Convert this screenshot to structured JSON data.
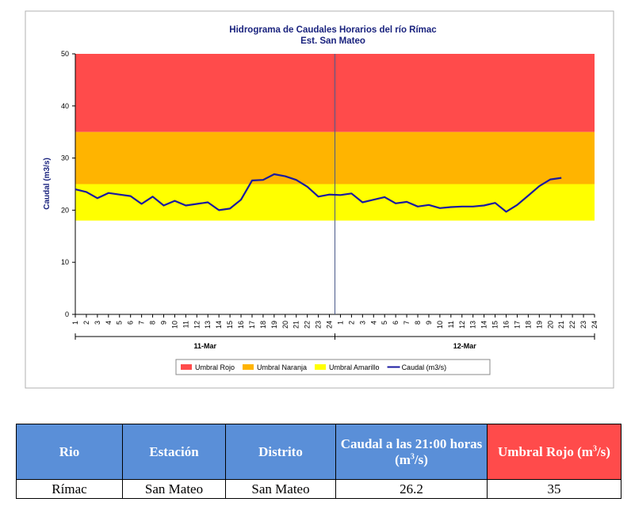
{
  "chart_data": {
    "type": "line",
    "title": "Hidrograma de Caudales Horarios del río Rímac",
    "subtitle": "Est. San Mateo",
    "y_label": "Caudal  (m3/s)",
    "ylim": [
      0,
      50
    ],
    "yticks": [
      0,
      10,
      20,
      30,
      40,
      50
    ],
    "categories": [
      "1",
      "2",
      "3",
      "4",
      "5",
      "6",
      "7",
      "8",
      "9",
      "10",
      "11",
      "12",
      "13",
      "14",
      "15",
      "16",
      "17",
      "18",
      "19",
      "20",
      "21",
      "22",
      "23",
      "24",
      "1",
      "2",
      "3",
      "4",
      "5",
      "6",
      "7",
      "8",
      "9",
      "10",
      "11",
      "12",
      "13",
      "14",
      "15",
      "16",
      "17",
      "18",
      "19",
      "20",
      "21",
      "22",
      "23",
      "24"
    ],
    "groups": [
      "11-Mar",
      "12-Mar"
    ],
    "bands": [
      {
        "name": "Umbral Rojo",
        "color": "#ff4b4b",
        "value": 35
      },
      {
        "name": "Umbral Naranja",
        "color": "#ffb400",
        "value": 25
      },
      {
        "name": "Umbral Amarillo",
        "color": "#ffff00",
        "value": 18
      }
    ],
    "series": [
      {
        "name": "Caudal (m3/s)",
        "color": "#1a1aa0",
        "values": [
          24.0,
          23.5,
          22.3,
          23.3,
          23.0,
          22.7,
          21.2,
          22.6,
          20.9,
          21.8,
          20.9,
          21.2,
          21.5,
          20.0,
          20.3,
          22.0,
          25.7,
          25.8,
          26.9,
          26.5,
          25.8,
          24.5,
          22.6,
          23.0,
          22.9,
          23.2,
          21.5,
          22.0,
          22.5,
          21.3,
          21.6,
          20.7,
          21.0,
          20.4,
          20.6,
          20.7,
          20.7,
          20.9,
          21.4,
          19.7,
          21.0,
          22.8,
          24.6,
          25.9,
          26.2,
          null,
          null,
          null
        ]
      }
    ]
  },
  "table": {
    "header": [
      "Rio",
      "Estación",
      "Distrito",
      {
        "text": "Caudal a las 21:00 horas (m",
        "sup": "3",
        "after": "/s)"
      },
      {
        "text": "Umbral Rojo (m",
        "sup": "3",
        "after": "/s)"
      }
    ],
    "rows": [
      [
        "Rímac",
        "San Mateo",
        "San Mateo",
        26.2,
        35
      ]
    ]
  }
}
